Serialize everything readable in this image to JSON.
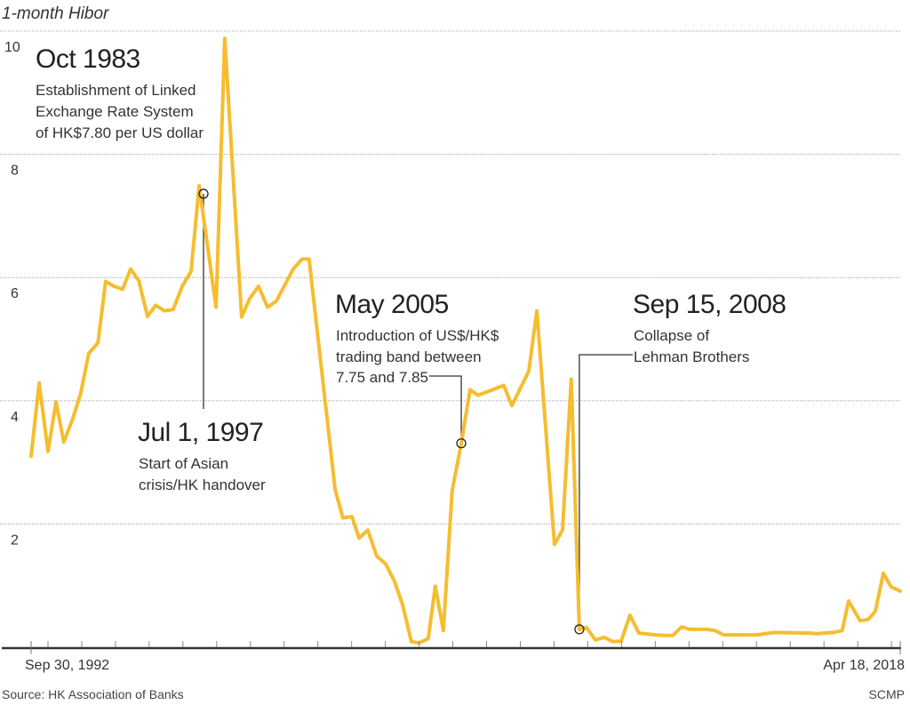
{
  "chart_data": {
    "type": "line",
    "title": "1-month Hibor",
    "xlabel": "",
    "ylabel": "",
    "x_tick_labels": {
      "start": "Sep 30, 1992",
      "end": "Apr 18, 2018"
    },
    "xlim": [
      1992.5,
      2018.26
    ],
    "ylim": [
      0,
      10
    ],
    "y_ticks": [
      2,
      4,
      6,
      8,
      10
    ],
    "x_minor_ticks_years": [
      1993,
      1994,
      1995,
      1996,
      1997,
      1998,
      1999,
      2000,
      2001,
      2002,
      2003,
      2004,
      2005,
      2006,
      2007,
      2008,
      2009,
      2010,
      2011,
      2012,
      2013,
      2014,
      2015,
      2016,
      2017,
      2018
    ],
    "grid": true,
    "line_color": "#F5BD2F",
    "series": [
      {
        "x": [
          1992.5,
          1992.74,
          1993.0,
          1993.24,
          1993.47,
          1993.74,
          1993.97,
          1994.21,
          1994.48,
          1994.71,
          1994.95,
          1995.21,
          1995.45,
          1995.69,
          1995.95,
          1996.19,
          1996.45,
          1996.71,
          1996.98,
          1997.24,
          1997.48,
          1997.98,
          1998.24,
          1998.74,
          1998.98,
          1999.24,
          1999.51,
          1999.77,
          2000.27,
          2000.53,
          2000.74,
          2001.51,
          2001.74,
          2002.01,
          2002.22,
          2002.48,
          2002.74,
          2003.01,
          2003.27,
          2003.51,
          2003.77,
          2004.01,
          2004.27,
          2004.48,
          2004.72,
          2004.98,
          2005.25,
          2005.51,
          2005.75,
          2006.51,
          2006.75,
          2007.25,
          2007.49,
          2008.01,
          2008.25,
          2008.51,
          2008.75,
          2008.96,
          2009.22,
          2009.49,
          2009.75,
          2009.99,
          2010.25,
          2010.51,
          2011.01,
          2011.28,
          2011.52,
          2011.78,
          2012.02,
          2012.52,
          2012.78,
          2013.02,
          2014.02,
          2014.52,
          2015.54,
          2015.78,
          2016.28,
          2016.54,
          2016.73,
          2017.07,
          2017.31,
          2017.52,
          2017.76,
          2017.99,
          2018.26
        ],
        "values": [
          3.1,
          4.29,
          3.18,
          3.98,
          3.33,
          3.72,
          4.12,
          4.77,
          4.94,
          5.94,
          5.86,
          5.81,
          6.14,
          5.95,
          5.37,
          5.55,
          5.46,
          5.48,
          5.86,
          6.1,
          7.49,
          5.52,
          9.88,
          5.36,
          5.66,
          5.86,
          5.52,
          5.62,
          6.14,
          6.3,
          6.3,
          2.56,
          2.1,
          2.12,
          1.77,
          1.9,
          1.48,
          1.35,
          1.07,
          0.69,
          0.09,
          0.07,
          0.14,
          0.99,
          0.27,
          2.54,
          3.31,
          4.18,
          4.09,
          4.25,
          3.92,
          4.48,
          5.46,
          1.67,
          1.9,
          4.35,
          0.29,
          0.32,
          0.12,
          0.16,
          0.09,
          0.1,
          0.52,
          0.23,
          0.2,
          0.19,
          0.19,
          0.33,
          0.29,
          0.29,
          0.27,
          0.2,
          0.2,
          0.24,
          0.23,
          0.22,
          0.24,
          0.27,
          0.75,
          0.43,
          0.45,
          0.58,
          1.2,
          0.98,
          0.91
        ]
      }
    ],
    "annotations": [
      {
        "heading": "Oct 1983",
        "lines": [
          "Establishment of Linked",
          "Exchange Rate System",
          "of HK$7.80 per US dollar"
        ]
      },
      {
        "heading": "Jul 1, 1997",
        "lines": [
          "Start of Asian",
          "crisis/HK handover"
        ],
        "x": 1997.61,
        "y": 7.36
      },
      {
        "heading": "May 2005",
        "lines": [
          "Introduction of US$/HK$",
          "trading band between",
          "7.75 and 7.85"
        ],
        "x": 2005.25,
        "y": 3.31
      },
      {
        "heading": "Sep 15, 2008",
        "lines": [
          "Collapse of",
          "Lehman Brothers"
        ],
        "x": 2008.75,
        "y": 0.29
      }
    ]
  },
  "footer": {
    "source": "Source: HK Association of Banks",
    "credit": "SCMP"
  }
}
